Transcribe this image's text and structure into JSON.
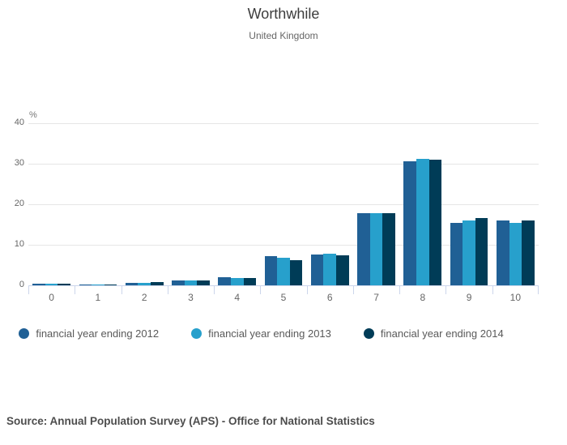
{
  "header": {
    "title": "Worthwhile",
    "subtitle": "United Kingdom"
  },
  "footer": {
    "source": "Source: Annual Population Survey (APS) - Office for National Statistics"
  },
  "colors": {
    "series_2012": "#206095",
    "series_2013": "#27A0CC",
    "series_2014": "#003C57",
    "axis_line": "#ccd6eb",
    "grid_line": "#e6e6e6",
    "tick_label": "#666666",
    "legend_text": "#595959",
    "title_text": "#3c3c3c",
    "source_text": "#4d4d4d"
  },
  "legend": {
    "items": [
      {
        "label": "financial year ending 2012",
        "color": "#206095"
      },
      {
        "label": "financial year ending 2013",
        "color": "#27A0CC"
      },
      {
        "label": "financial year ending 2014",
        "color": "#003C57"
      }
    ]
  },
  "chart_data": {
    "type": "bar",
    "title": "Worthwhile",
    "subtitle": "United Kingdom",
    "categories": [
      "0",
      "1",
      "2",
      "3",
      "4",
      "5",
      "6",
      "7",
      "8",
      "9",
      "10"
    ],
    "series": [
      {
        "name": "financial year ending 2012",
        "color": "#206095",
        "values": [
          0.5,
          0.3,
          0.7,
          1.2,
          2.0,
          7.2,
          7.7,
          17.9,
          30.6,
          15.5,
          16.0
        ]
      },
      {
        "name": "financial year ending 2013",
        "color": "#27A0CC",
        "values": [
          0.5,
          0.3,
          0.7,
          1.2,
          1.9,
          6.8,
          7.9,
          17.9,
          31.2,
          16.0,
          15.4
        ]
      },
      {
        "name": "financial year ending 2014",
        "color": "#003C57",
        "values": [
          0.5,
          0.3,
          0.8,
          1.2,
          1.8,
          6.3,
          7.5,
          17.8,
          31.0,
          16.6,
          16.0
        ]
      }
    ],
    "xlabel": "",
    "ylabel": "%",
    "ylim": [
      0,
      40
    ],
    "yticks": [
      0,
      10,
      20,
      30,
      40
    ],
    "grid": true,
    "legend_position": "bottom"
  }
}
